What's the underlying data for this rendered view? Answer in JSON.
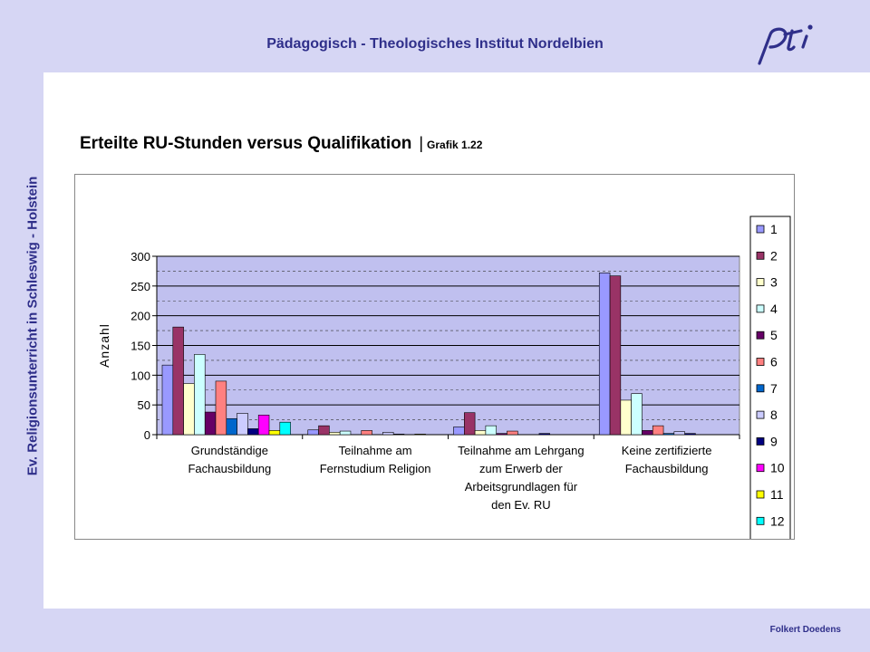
{
  "header": {
    "title": "Pädagogisch - Theologisches Institut Nordelbien"
  },
  "logo": {
    "text": "pti"
  },
  "sidebar": {
    "label": "Ev. Religionsunterricht in Schleswig - Holstein"
  },
  "slide": {
    "title": "Erteilte RU-Stunden versus Qualifikation",
    "separator": "|",
    "subtitle": "Grafik 1.22"
  },
  "footer": {
    "author": "Folkert Doedens"
  },
  "colors": {
    "background": "#d6d6f4",
    "accent": "#2f2f8a",
    "plot_area": "#c0c0ef"
  },
  "chart_data": {
    "type": "bar",
    "ylabel": "Anzahl",
    "xlabel": "",
    "ylim": [
      0,
      300
    ],
    "yticks": [
      0,
      50,
      100,
      150,
      200,
      250,
      300
    ],
    "grid": true,
    "legend": "right",
    "categories": [
      [
        "Grundständige",
        "Fachausbildung"
      ],
      [
        "Teilnahme am",
        "Fernstudium Religion"
      ],
      [
        "Teilnahme am Lehrgang",
        "zum Erwerb der",
        "Arbeitsgrundlagen für",
        "den Ev. RU"
      ],
      [
        "Keine zertifizierte",
        "Fachausbildung"
      ]
    ],
    "series": [
      {
        "name": "1",
        "color": "#9999ff",
        "values": [
          117,
          8,
          13,
          272
        ]
      },
      {
        "name": "2",
        "color": "#993366",
        "values": [
          181,
          15,
          37,
          267
        ]
      },
      {
        "name": "3",
        "color": "#ffffcc",
        "values": [
          86,
          4,
          7,
          58
        ]
      },
      {
        "name": "4",
        "color": "#ccffff",
        "values": [
          135,
          6,
          15,
          69
        ]
      },
      {
        "name": "5",
        "color": "#660066",
        "values": [
          38,
          0,
          2,
          7
        ]
      },
      {
        "name": "6",
        "color": "#ff8080",
        "values": [
          90,
          7,
          6,
          15
        ]
      },
      {
        "name": "7",
        "color": "#0066cc",
        "values": [
          27,
          0,
          0,
          2
        ]
      },
      {
        "name": "8",
        "color": "#ccccff",
        "values": [
          36,
          4,
          0,
          5
        ]
      },
      {
        "name": "9",
        "color": "#000080",
        "values": [
          10,
          1,
          2,
          2
        ]
      },
      {
        "name": "10",
        "color": "#ff00ff",
        "values": [
          33,
          0,
          0,
          0
        ]
      },
      {
        "name": "11",
        "color": "#ffff00",
        "values": [
          7,
          1,
          0,
          0
        ]
      },
      {
        "name": "12",
        "color": "#00ffff",
        "values": [
          21,
          0,
          0,
          0
        ]
      }
    ]
  }
}
